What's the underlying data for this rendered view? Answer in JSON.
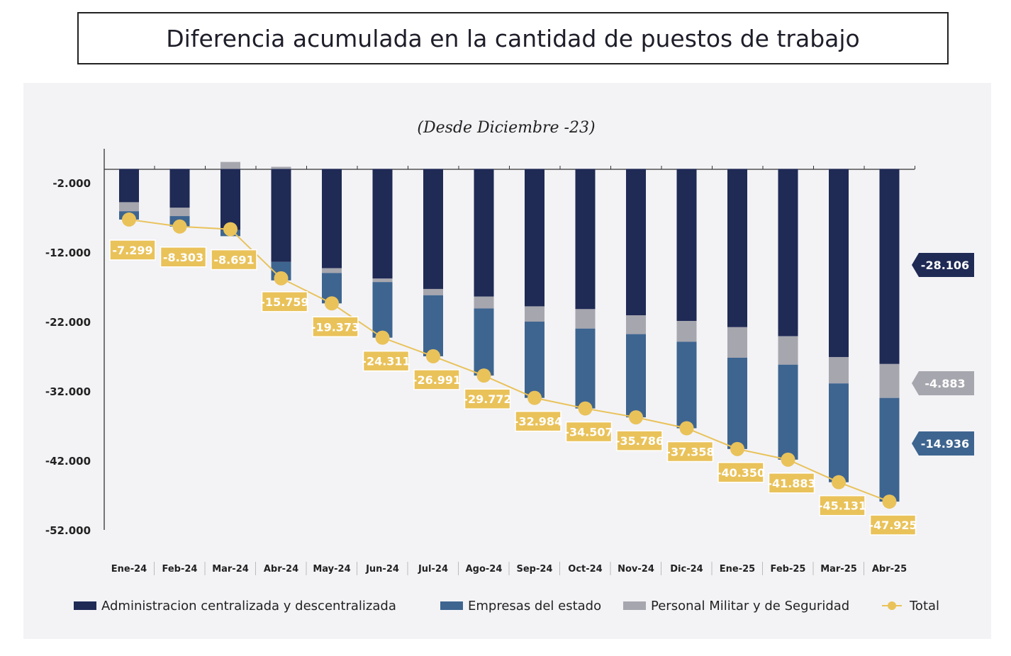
{
  "chart_data": {
    "type": "bar",
    "title": "Diferencia acumulada en la cantidad de puestos de trabajo",
    "subtitle": "(Desde Diciembre -23)",
    "stacked": true,
    "categories": [
      "Ene-24",
      "Feb-24",
      "Mar-24",
      "Abr-24",
      "May-24",
      "Jun-24",
      "Jul-24",
      "Ago-24",
      "Sep-24",
      "Oct-24",
      "Nov-24",
      "Dic-24",
      "Ene-25",
      "Feb-25",
      "Mar-25",
      "Abr-25"
    ],
    "series": [
      {
        "name": "Administracion centralizada y descentralizada",
        "color": "#1f2a55",
        "values": [
          -4800,
          -5600,
          -8800,
          -13400,
          -14300,
          -15800,
          -17300,
          -18400,
          -19800,
          -20200,
          -21100,
          -21900,
          -22800,
          -24100,
          -27100,
          -28106
        ]
      },
      {
        "name": "Personal Militar y de Seguridad",
        "color": "#a6a6ae",
        "values": [
          -1300,
          -1200,
          1000,
          300,
          -700,
          -500,
          -900,
          -1700,
          -2200,
          -2800,
          -2700,
          -3000,
          -4400,
          -4100,
          -3800,
          -4883
        ]
      },
      {
        "name": "Empresas del estado",
        "color": "#3e6590",
        "values": [
          -1199,
          -1503,
          -891,
          -2659,
          -4373,
          -8011,
          -8791,
          -9672,
          -10984,
          -11507,
          -11986,
          -12458,
          -13150,
          -13683,
          -14231,
          -14936
        ]
      }
    ],
    "line": {
      "name": "Total",
      "color": "#e9c25a",
      "values": [
        -7299,
        -8303,
        -8691,
        -15759,
        -19373,
        -24311,
        -26991,
        -29772,
        -32984,
        -34507,
        -35786,
        -37358,
        -40350,
        -41883,
        -45131,
        -47925
      ],
      "labels": [
        "-7.299",
        "-8.303",
        "-8.691",
        "-15.759",
        "-19.373",
        "-24.311",
        "-26.991",
        "-29.772",
        "-32.984",
        "-34.507",
        "-35.786",
        "-37.358",
        "-40.350",
        "-41.883",
        "-45.131",
        "-47.925"
      ]
    },
    "end_labels": [
      "-28.106",
      "-4.883",
      "-14.936"
    ],
    "yticks": [
      -2000,
      -12000,
      -22000,
      -32000,
      -42000,
      -52000
    ],
    "ytick_labels": [
      "-2.000",
      "-12.000",
      "-22.000",
      "-32.000",
      "-42.000",
      "-52.000"
    ],
    "ylim": [
      -52000,
      2800
    ],
    "legend": {
      "placement": "bottom",
      "order": [
        "Administracion centralizada y descentralizada",
        "Empresas del estado",
        "Personal Militar y de Seguridad",
        "Total"
      ]
    }
  }
}
